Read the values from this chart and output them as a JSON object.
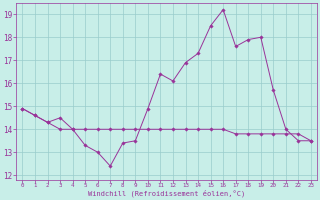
{
  "xlabel": "Windchill (Refroidissement éolien,°C)",
  "background_color": "#c8eee8",
  "grid_color": "#99cccc",
  "line_color": "#993399",
  "x_hours": [
    0,
    1,
    2,
    3,
    4,
    5,
    6,
    7,
    8,
    9,
    10,
    11,
    12,
    13,
    14,
    15,
    16,
    17,
    18,
    19,
    20,
    21,
    22,
    23
  ],
  "temp_line": [
    14.9,
    14.6,
    14.3,
    14.5,
    14.0,
    13.3,
    13.0,
    12.4,
    13.4,
    13.5,
    14.9,
    16.4,
    16.1,
    16.9,
    17.3,
    18.5,
    19.2,
    17.6,
    17.9,
    18.0,
    15.7,
    14.0,
    13.5,
    13.5
  ],
  "windchill_line": [
    14.9,
    14.6,
    14.3,
    14.0,
    14.0,
    14.0,
    14.0,
    14.0,
    14.0,
    14.0,
    14.0,
    14.0,
    14.0,
    14.0,
    14.0,
    14.0,
    14.0,
    13.8,
    13.8,
    13.8,
    13.8,
    13.8,
    13.8,
    13.5
  ],
  "ylim": [
    11.8,
    19.5
  ],
  "xlim": [
    -0.5,
    23.5
  ],
  "yticks": [
    12,
    13,
    14,
    15,
    16,
    17,
    18,
    19
  ],
  "xticks": [
    0,
    1,
    2,
    3,
    4,
    5,
    6,
    7,
    8,
    9,
    10,
    11,
    12,
    13,
    14,
    15,
    16,
    17,
    18,
    19,
    20,
    21,
    22,
    23
  ],
  "figsize": [
    3.2,
    2.0
  ],
  "dpi": 100
}
